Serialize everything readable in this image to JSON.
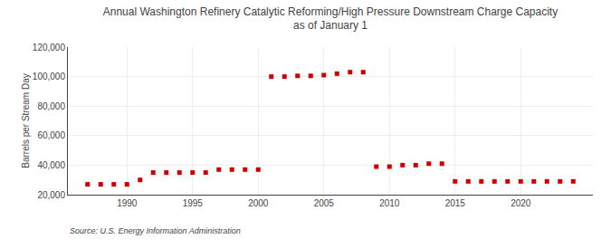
{
  "chart_data": {
    "type": "scatter",
    "title": "Annual Washington Refinery Catalytic Reforming/High Pressure Downstream Charge Capacity\nas of January 1",
    "ylabel": "Barrels per Stream Day",
    "source": "Source: U.S. Energy Information Administration",
    "color": "#cc0000",
    "marker": "square",
    "grid": true,
    "x": [
      1987,
      1988,
      1989,
      1990,
      1991,
      1992,
      1993,
      1994,
      1995,
      1996,
      1997,
      1998,
      1999,
      2000,
      2001,
      2002,
      2003,
      2004,
      2005,
      2006,
      2007,
      2008,
      2009,
      2010,
      2011,
      2012,
      2013,
      2014,
      2015,
      2016,
      2017,
      2018,
      2019,
      2020,
      2021,
      2022,
      2023,
      2024
    ],
    "values": [
      27000,
      27000,
      27000,
      27000,
      30000,
      35000,
      35000,
      35000,
      35000,
      35000,
      37000,
      37000,
      37000,
      37000,
      100000,
      100000,
      100500,
      100500,
      101000,
      102000,
      103000,
      103000,
      39000,
      39000,
      40000,
      40000,
      41000,
      41000,
      29000,
      29000,
      29000,
      29000,
      29000,
      29000,
      29000,
      29000,
      29000,
      29000
    ],
    "xlim": [
      1985.5,
      2025.5
    ],
    "xticks": [
      1990,
      1995,
      2000,
      2005,
      2010,
      2015,
      2020
    ],
    "ylim": [
      20000,
      120000
    ],
    "yticks": [
      {
        "value": 20000,
        "label": "20,000"
      },
      {
        "value": 40000,
        "label": "40,000"
      },
      {
        "value": 60000,
        "label": "60,000"
      },
      {
        "value": 80000,
        "label": "80,000"
      },
      {
        "value": 100000,
        "label": "100,000"
      },
      {
        "value": 120000,
        "label": "120,000"
      }
    ]
  }
}
